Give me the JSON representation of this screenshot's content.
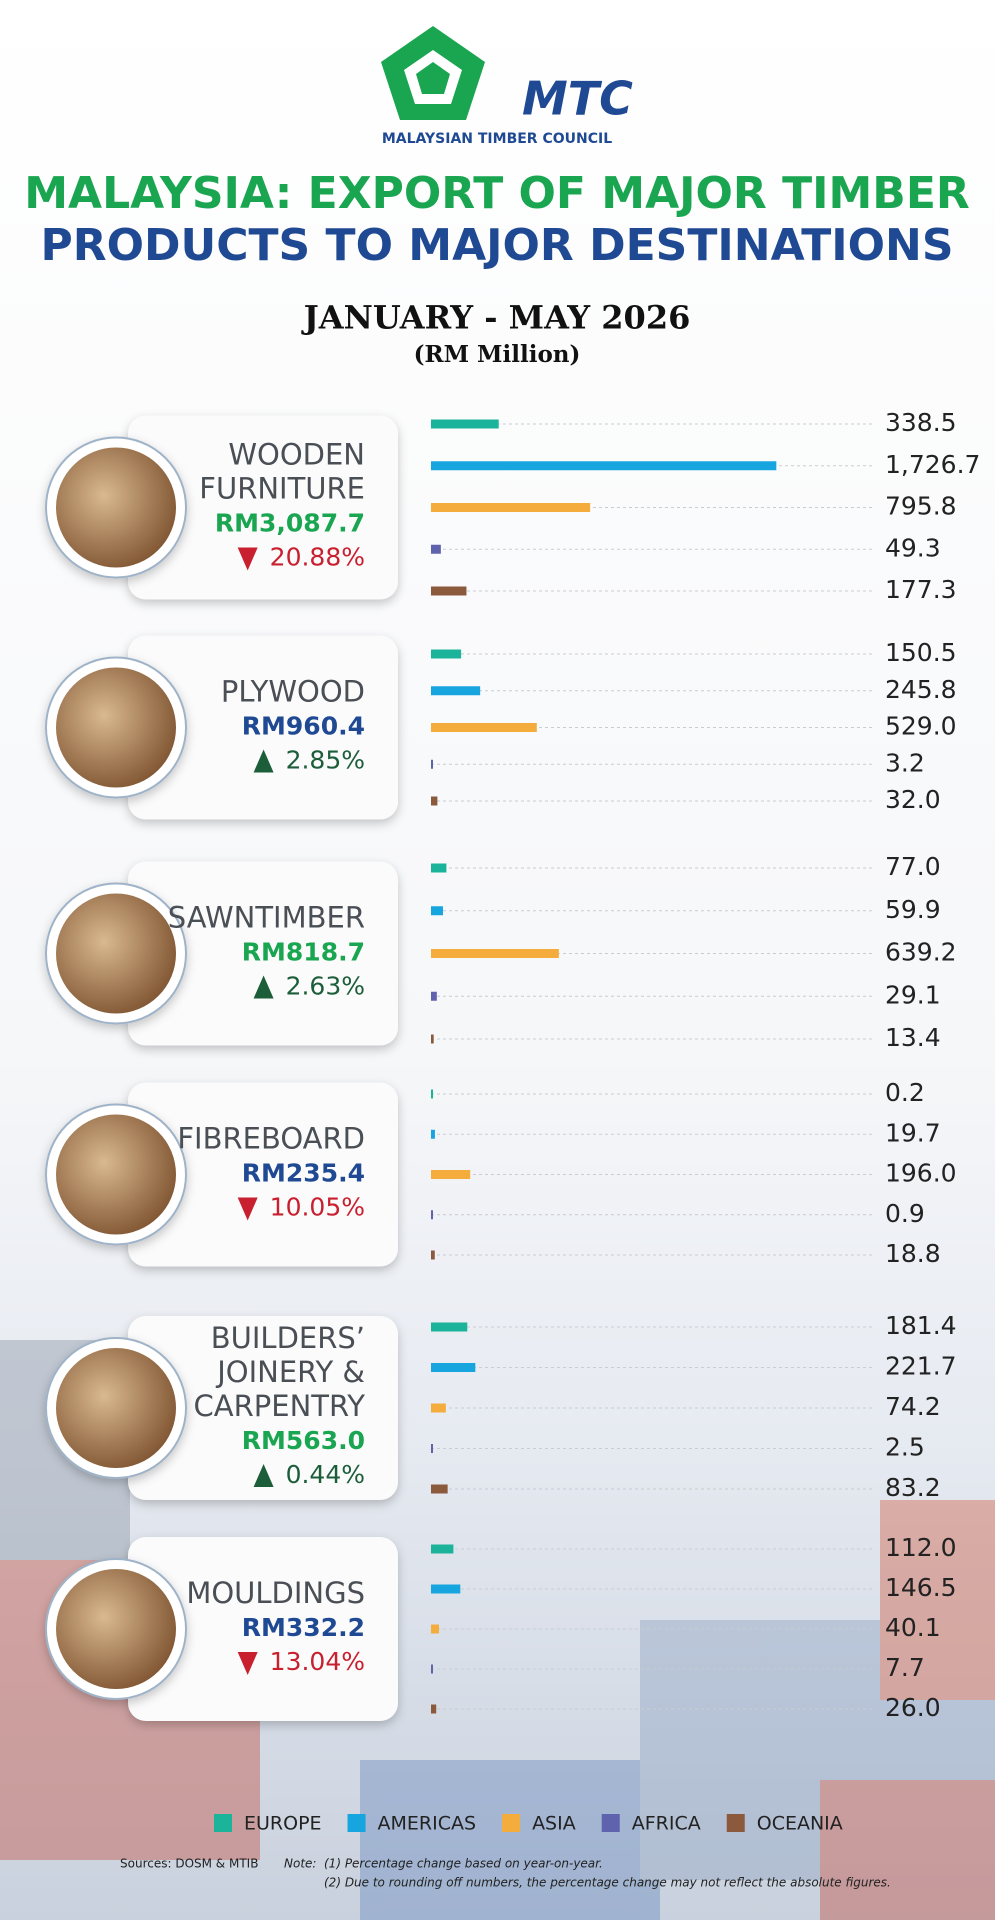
{
  "header": {
    "logo_mark": "MTC",
    "logo_name": "MALAYSIAN TIMBER COUNCIL",
    "title_line_1": "MALAYSIA: EXPORT OF MAJOR TIMBER",
    "title_line_2": "PRODUCTS TO MAJOR DESTINATIONS",
    "period": "JANUARY - MAY 2026",
    "unit": "(RM Million)"
  },
  "legend": {
    "categories": [
      "EUROPE",
      "AMERICAS",
      "ASIA",
      "AFRICA",
      "OCEANIA"
    ],
    "colors": [
      "#1bb39a",
      "#16a5df",
      "#f4ad3d",
      "#5f63ad",
      "#8b5a3c"
    ]
  },
  "chart_data": [
    {
      "type": "bar",
      "title": [
        "WOODEN",
        "FURNITURE"
      ],
      "total": "RM3,087.7",
      "total_color": "#1aa551",
      "change": "20.88%",
      "direction": "down",
      "values": [
        338.5,
        1726.7,
        795.8,
        49.3,
        177.3
      ],
      "value_labels": [
        "338.5",
        "1,726.7",
        "795.8",
        "49.3",
        "177.3"
      ]
    },
    {
      "type": "bar",
      "title": [
        "PLYWOOD"
      ],
      "total": "RM960.4",
      "total_color": "#1f4a93",
      "change": "2.85%",
      "direction": "up",
      "values": [
        150.5,
        245.8,
        529.0,
        3.2,
        32.0
      ],
      "value_labels": [
        "150.5",
        "245.8",
        "529.0",
        "3.2",
        "32.0"
      ]
    },
    {
      "type": "bar",
      "title": [
        "SAWNTIMBER"
      ],
      "total": "RM818.7",
      "total_color": "#1aa551",
      "change": "2.63%",
      "direction": "up",
      "values": [
        77.0,
        59.9,
        639.2,
        29.1,
        13.4
      ],
      "value_labels": [
        "77.0",
        "59.9",
        "639.2",
        "29.1",
        "13.4"
      ]
    },
    {
      "type": "bar",
      "title": [
        "FIBREBOARD"
      ],
      "total": "RM235.4",
      "total_color": "#1f4a93",
      "change": "10.05%",
      "direction": "down",
      "values": [
        0.2,
        19.7,
        196.0,
        0.9,
        18.8
      ],
      "value_labels": [
        "0.2",
        "19.7",
        "196.0",
        "0.9",
        "18.8"
      ]
    },
    {
      "type": "bar",
      "title": [
        "BUILDERS’",
        "JOINERY &",
        "CARPENTRY"
      ],
      "total": "RM563.0",
      "total_color": "#1aa551",
      "change": "0.44%",
      "direction": "up",
      "values": [
        181.4,
        221.7,
        74.2,
        2.5,
        83.2
      ],
      "value_labels": [
        "181.4",
        "221.7",
        "74.2",
        "2.5",
        "83.2"
      ]
    },
    {
      "type": "bar",
      "title": [
        "MOULDINGS"
      ],
      "total": "RM332.2",
      "total_color": "#1f4a93",
      "change": "13.04%",
      "direction": "down",
      "values": [
        112.0,
        146.5,
        40.1,
        7.7,
        26.0
      ],
      "value_labels": [
        "112.0",
        "146.5",
        "40.1",
        "7.7",
        "26.0"
      ]
    }
  ],
  "footer": {
    "sources": "Sources: DOSM & MTIB",
    "note_label": "Note:",
    "note_1": "(1) Percentage change based on year-on-year.",
    "note_2": "(2) Due to rounding off numbers, the percentage change may not reflect the absolute figures."
  }
}
